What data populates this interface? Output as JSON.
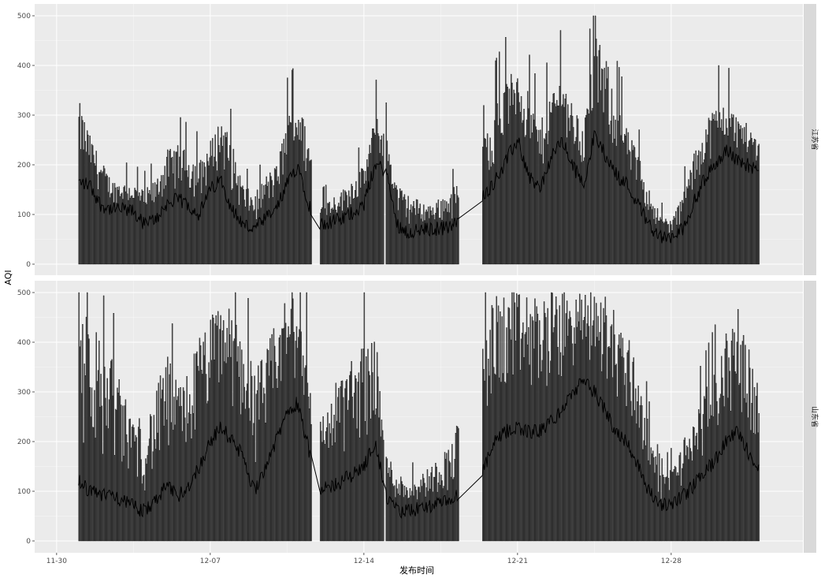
{
  "chart_data": {
    "type": "bar",
    "xlabel": "发布时间",
    "ylabel": "AQI",
    "ylim": [
      0,
      500
    ],
    "y_ticks": [
      "0",
      "100",
      "200",
      "300",
      "400",
      "500"
    ],
    "x_range": [
      "11-30",
      "01-03"
    ],
    "x_ticks": [
      {
        "label": "11-30",
        "day": 0
      },
      {
        "label": "12-07",
        "day": 7
      },
      {
        "label": "12-14",
        "day": 14
      },
      {
        "label": "12-21",
        "day": 21
      },
      {
        "label": "12-28",
        "day": 28
      }
    ],
    "grid": true,
    "facets": [
      {
        "strip": "江苏省",
        "coverage": [
          [
            1.0,
            11.6
          ],
          [
            12.0,
            14.9
          ],
          [
            15.0,
            18.3
          ],
          [
            19.4,
            32.0
          ]
        ],
        "series_note": "dense hourly AQI bars with a dark daily-median line",
        "profile": [
          [
            "12-01",
            1.0,
            165,
            330
          ],
          [
            "12-01",
            1.5,
            160,
            260
          ],
          [
            "12-02",
            2.0,
            120,
            210
          ],
          [
            "12-02",
            2.5,
            110,
            170
          ],
          [
            "12-03",
            3.0,
            110,
            165
          ],
          [
            "12-03",
            3.5,
            105,
            160
          ],
          [
            "12-04",
            4.0,
            80,
            150
          ],
          [
            "12-04",
            4.5,
            90,
            170
          ],
          [
            "12-05",
            5.0,
            120,
            230
          ],
          [
            "12-05",
            5.5,
            130,
            240
          ],
          [
            "12-06",
            6.0,
            120,
            225
          ],
          [
            "12-06",
            6.5,
            100,
            210
          ],
          [
            "12-07",
            7.0,
            150,
            250
          ],
          [
            "12-07",
            7.5,
            170,
            300
          ],
          [
            "12-08",
            8.0,
            110,
            240
          ],
          [
            "12-08",
            8.5,
            80,
            160
          ],
          [
            "12-09",
            9.0,
            70,
            140
          ],
          [
            "12-09",
            9.5,
            90,
            180
          ],
          [
            "12-10",
            10.0,
            110,
            200
          ],
          [
            "12-10",
            10.5,
            160,
            300
          ],
          [
            "12-11",
            11.0,
            200,
            330
          ],
          [
            "12-11",
            11.5,
            120,
            250
          ],
          [
            "12-12",
            12.0,
            80,
            120
          ],
          [
            "12-13",
            13.0,
            90,
            150
          ],
          [
            "12-14",
            14.0,
            120,
            200
          ],
          [
            "12-14",
            14.5,
            200,
            300
          ],
          [
            "12-15",
            15.0,
            190,
            260
          ],
          [
            "12-15",
            15.5,
            80,
            160
          ],
          [
            "12-16",
            16.0,
            65,
            140
          ],
          [
            "12-17",
            17.0,
            70,
            120
          ],
          [
            "12-18",
            18.0,
            75,
            150
          ],
          [
            "12-19",
            19.5,
            140,
            260
          ],
          [
            "12-20",
            20.0,
            170,
            330
          ],
          [
            "12-20",
            20.5,
            210,
            370
          ],
          [
            "12-21",
            21.0,
            250,
            410
          ],
          [
            "12-21",
            21.5,
            180,
            340
          ],
          [
            "12-22",
            22.0,
            150,
            280
          ],
          [
            "12-22",
            22.5,
            210,
            350
          ],
          [
            "12-23",
            23.0,
            250,
            380
          ],
          [
            "12-23",
            23.5,
            200,
            320
          ],
          [
            "12-24",
            24.0,
            160,
            280
          ],
          [
            "12-24",
            24.5,
            260,
            460
          ],
          [
            "12-25",
            25.0,
            220,
            420
          ],
          [
            "12-25",
            25.5,
            180,
            330
          ],
          [
            "12-26",
            26.0,
            160,
            270
          ],
          [
            "12-26",
            26.5,
            120,
            220
          ],
          [
            "12-27",
            27.0,
            80,
            150
          ],
          [
            "12-27",
            27.5,
            55,
            100
          ],
          [
            "12-28",
            28.0,
            50,
            90
          ],
          [
            "12-28",
            28.5,
            70,
            140
          ],
          [
            "12-29",
            29.0,
            120,
            220
          ],
          [
            "12-29",
            29.5,
            170,
            290
          ],
          [
            "12-30",
            30.0,
            200,
            320
          ],
          [
            "12-30",
            30.5,
            230,
            320
          ],
          [
            "12-31",
            31.0,
            210,
            300
          ],
          [
            "12-31",
            31.5,
            200,
            280
          ],
          [
            "01-01",
            32.0,
            180,
            250
          ]
        ]
      },
      {
        "strip": "山东省",
        "coverage": [
          [
            1.0,
            11.6
          ],
          [
            12.0,
            14.9
          ],
          [
            15.0,
            18.3
          ],
          [
            19.4,
            32.0
          ]
        ],
        "series_note": "dense hourly AQI bars with a dark daily-median line",
        "profile": [
          [
            "12-01",
            1.0,
            120,
            500
          ],
          [
            "12-01",
            1.5,
            100,
            470
          ],
          [
            "12-02",
            2.0,
            90,
            400
          ],
          [
            "12-02",
            2.5,
            100,
            380
          ],
          [
            "12-03",
            3.0,
            80,
            300
          ],
          [
            "12-03",
            3.5,
            70,
            260
          ],
          [
            "12-04",
            4.0,
            60,
            240
          ],
          [
            "12-04",
            4.5,
            80,
            300
          ],
          [
            "12-05",
            5.0,
            110,
            380
          ],
          [
            "12-05",
            5.5,
            90,
            320
          ],
          [
            "12-06",
            6.0,
            110,
            350
          ],
          [
            "12-06",
            6.5,
            150,
            420
          ],
          [
            "12-07",
            7.0,
            200,
            450
          ],
          [
            "12-07",
            7.5,
            230,
            500
          ],
          [
            "12-08",
            8.0,
            200,
            460
          ],
          [
            "12-08",
            8.5,
            170,
            420
          ],
          [
            "12-09",
            9.0,
            100,
            350
          ],
          [
            "12-09",
            9.5,
            150,
            380
          ],
          [
            "12-10",
            10.0,
            200,
            450
          ],
          [
            "12-10",
            10.5,
            260,
            500
          ],
          [
            "12-11",
            11.0,
            280,
            480
          ],
          [
            "12-11",
            11.5,
            180,
            380
          ],
          [
            "12-12",
            12.0,
            100,
            250
          ],
          [
            "12-13",
            13.0,
            120,
            350
          ],
          [
            "12-14",
            14.0,
            150,
            400
          ],
          [
            "12-14",
            14.5,
            200,
            420
          ],
          [
            "12-15",
            15.0,
            90,
            180
          ],
          [
            "12-15",
            15.5,
            60,
            140
          ],
          [
            "12-16",
            16.0,
            60,
            120
          ],
          [
            "12-17",
            17.0,
            70,
            150
          ],
          [
            "12-18",
            18.0,
            80,
            200
          ],
          [
            "12-19",
            19.5,
            150,
            450
          ],
          [
            "12-20",
            20.0,
            200,
            500
          ],
          [
            "12-20",
            20.5,
            220,
            500
          ],
          [
            "12-21",
            21.0,
            230,
            500
          ],
          [
            "12-21",
            21.5,
            220,
            500
          ],
          [
            "12-22",
            22.0,
            220,
            500
          ],
          [
            "12-22",
            22.5,
            240,
            500
          ],
          [
            "12-23",
            23.0,
            260,
            500
          ],
          [
            "12-23",
            23.5,
            300,
            500
          ],
          [
            "12-24",
            24.0,
            320,
            500
          ],
          [
            "12-24",
            24.5,
            300,
            500
          ],
          [
            "12-25",
            25.0,
            260,
            500
          ],
          [
            "12-25",
            25.5,
            220,
            460
          ],
          [
            "12-26",
            26.0,
            200,
            420
          ],
          [
            "12-26",
            26.5,
            150,
            350
          ],
          [
            "12-27",
            27.0,
            100,
            220
          ],
          [
            "12-27",
            27.5,
            70,
            130
          ],
          [
            "12-28",
            28.0,
            75,
            150
          ],
          [
            "12-28",
            28.5,
            90,
            200
          ],
          [
            "12-29",
            29.0,
            110,
            250
          ],
          [
            "12-29",
            29.5,
            140,
            300
          ],
          [
            "12-30",
            30.0,
            160,
            350
          ],
          [
            "12-30",
            30.5,
            200,
            420
          ],
          [
            "12-31",
            31.0,
            220,
            470
          ],
          [
            "12-31",
            31.5,
            180,
            400
          ],
          [
            "01-01",
            32.0,
            140,
            300
          ]
        ]
      }
    ]
  },
  "colors": {
    "panel_bg": "#ebebeb",
    "grid_major": "#ffffff",
    "bar_fill": "#595959",
    "bar_outline": "#000000",
    "line": "#000000",
    "strip_bg": "#d9d9d9",
    "tick_text": "#4d4d4d"
  }
}
